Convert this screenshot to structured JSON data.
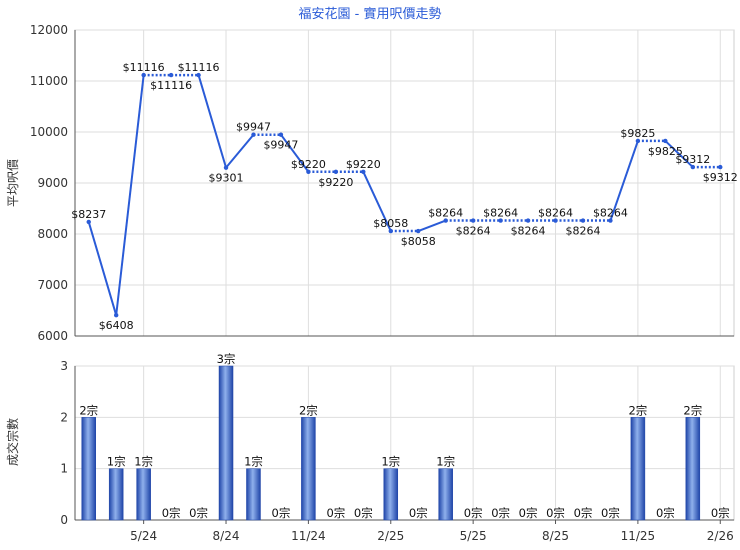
{
  "chart_data": [
    {
      "type": "line",
      "title": "福安花園 - 實用呎價走勢",
      "ylabel": "平均呎價",
      "ylim": [
        6000,
        12000
      ],
      "yticks": [
        6000,
        7000,
        8000,
        9000,
        10000,
        11000,
        12000
      ],
      "grid": true,
      "line_color": "#2a5bd7",
      "points": [
        {
          "value": 8237,
          "label": "$8237",
          "segment": "solid"
        },
        {
          "value": 6408,
          "label": "$6408",
          "segment": "solid"
        },
        {
          "value": 11116,
          "label": "$11116",
          "segment": "solid"
        },
        {
          "value": 11116,
          "label": "$11116",
          "segment": "dotted"
        },
        {
          "value": 11116,
          "label": "$11116",
          "segment": "dotted"
        },
        {
          "value": 9301,
          "label": "$9301",
          "segment": "solid"
        },
        {
          "value": 9947,
          "label": "$9947",
          "segment": "solid"
        },
        {
          "value": 9947,
          "label": "$9947",
          "segment": "dotted"
        },
        {
          "value": 9220,
          "label": "$9220",
          "segment": "solid"
        },
        {
          "value": 9220,
          "label": "$9220",
          "segment": "dotted"
        },
        {
          "value": 9220,
          "label": "$9220",
          "segment": "dotted"
        },
        {
          "value": 8058,
          "label": "$8058",
          "segment": "solid"
        },
        {
          "value": 8058,
          "label": "$8058",
          "segment": "dotted"
        },
        {
          "value": 8264,
          "label": "$8264",
          "segment": "solid"
        },
        {
          "value": 8264,
          "label": "$8264",
          "segment": "dotted"
        },
        {
          "value": 8264,
          "label": "$8264",
          "segment": "dotted"
        },
        {
          "value": 8264,
          "label": "$8264",
          "segment": "dotted"
        },
        {
          "value": 8264,
          "label": "$8264",
          "segment": "dotted"
        },
        {
          "value": 8264,
          "label": "$8264",
          "segment": "dotted"
        },
        {
          "value": 8264,
          "label": "$8264",
          "segment": "dotted"
        },
        {
          "value": 9825,
          "label": "$9825",
          "segment": "solid"
        },
        {
          "value": 9825,
          "label": "$9825",
          "segment": "dotted"
        },
        {
          "value": 9312,
          "label": "$9312",
          "segment": "solid"
        },
        {
          "value": 9312,
          "label": "$9312",
          "segment": "dotted"
        }
      ]
    },
    {
      "type": "bar",
      "ylabel": "成交宗數",
      "ylim": [
        0,
        3
      ],
      "yticks": [
        0,
        1,
        2,
        3
      ],
      "grid": true,
      "bar_color": "#3a66c8",
      "categories": [
        "",
        "",
        "5/24",
        "",
        "",
        "8/24",
        "",
        "",
        "11/24",
        "",
        "",
        "2/25",
        "",
        "",
        "5/25",
        "",
        "",
        "8/25",
        "",
        "",
        "11/25",
        "",
        "",
        "2/26"
      ],
      "values": [
        2,
        1,
        1,
        0,
        0,
        3,
        1,
        0,
        2,
        0,
        0,
        1,
        0,
        1,
        0,
        0,
        0,
        0,
        0,
        0,
        2,
        0,
        2,
        0
      ],
      "labels": [
        "2宗",
        "1宗",
        "1宗",
        "0宗",
        "0宗",
        "3宗",
        "1宗",
        "0宗",
        "2宗",
        "0宗",
        "0宗",
        "1宗",
        "0宗",
        "1宗",
        "0宗",
        "0宗",
        "0宗",
        "0宗",
        "0宗",
        "0宗",
        "2宗",
        "0宗",
        "2宗",
        "0宗"
      ]
    }
  ]
}
